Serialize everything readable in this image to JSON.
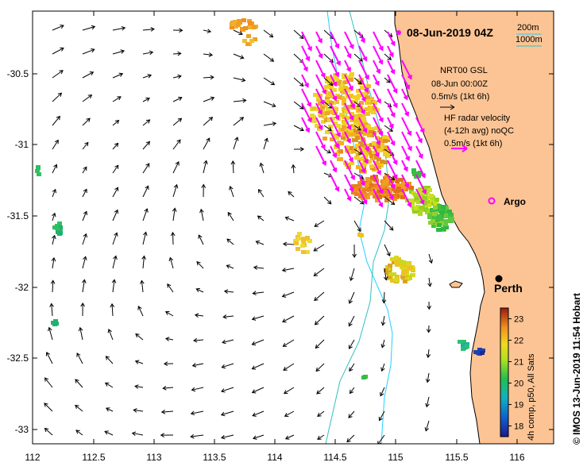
{
  "title": "08-Jun-2019 04Z",
  "bathymetry_legend": {
    "contour_1": "200m",
    "contour_2": "1000m",
    "color_1": "#20d0ff",
    "color_2": "#30c0c0"
  },
  "model_legend": {
    "line1": "NRT00 GSL",
    "line2": "08-Jun 00:00Z",
    "line3": "0.5m/s (1kt 6h)"
  },
  "radar_legend": {
    "line1": "HF radar velocity",
    "line2": "(4-12h avg) noQC",
    "line3": "0.5m/s (1kt 6h)",
    "color": "#ff00ff"
  },
  "argo_label": "Argo",
  "city_label": "Perth",
  "credit": "© IMOS 13-Jun-2019 11:54 Hobart",
  "x_ticks": [
    "112",
    "112.5",
    "113",
    "113.5",
    "114",
    "114.5",
    "115",
    "115.5",
    "116"
  ],
  "y_ticks": [
    "-30.5",
    "-31",
    "-31.5",
    "-32",
    "-32.5",
    "-33"
  ],
  "colorbar": {
    "label": "4h comp, p50, All Sats",
    "ticks": [
      "23",
      "22",
      "21",
      "20",
      "19",
      "18"
    ],
    "min": 17.5,
    "max": 23.5
  },
  "colors": {
    "land": "#fcc494",
    "coast": "#000000",
    "arrow": "#000000"
  }
}
